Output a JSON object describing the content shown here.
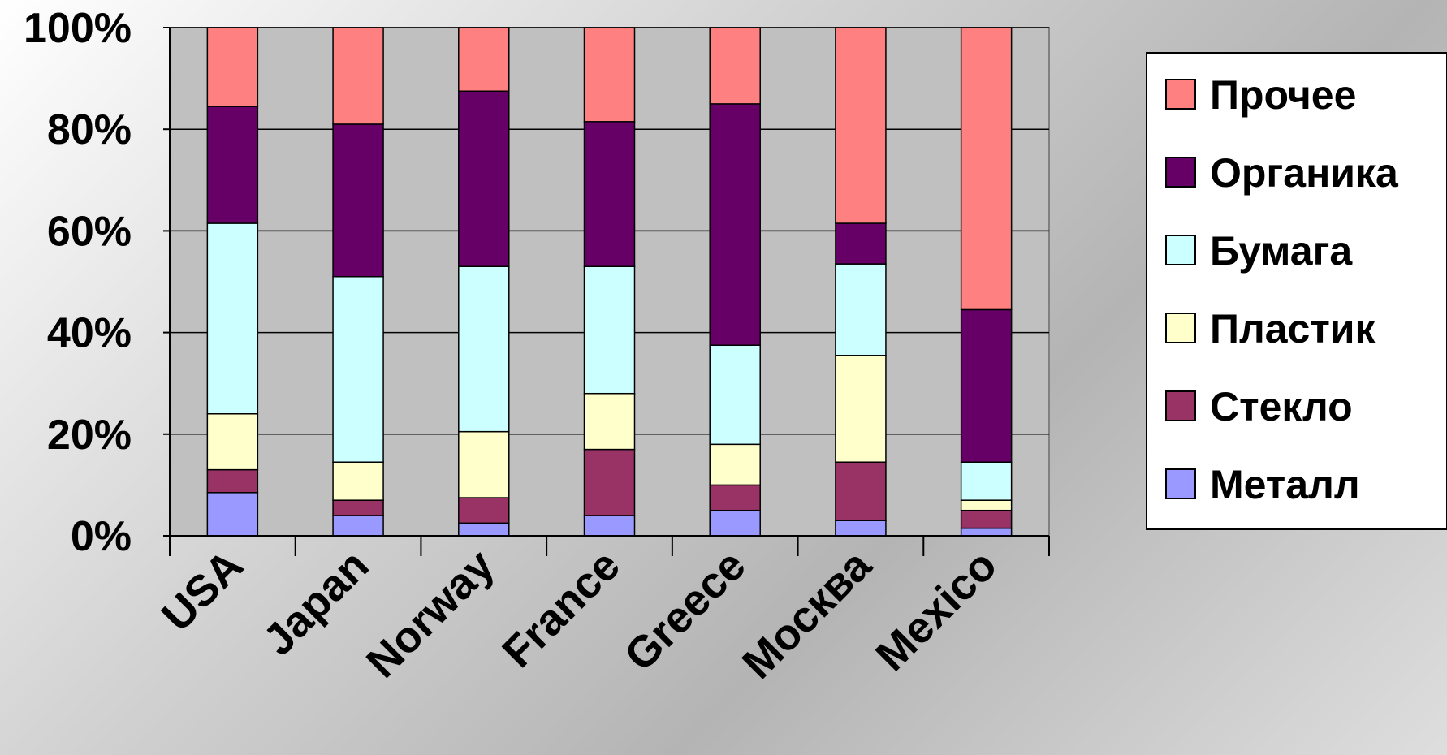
{
  "chart_data": {
    "type": "bar",
    "stacked": true,
    "percent": true,
    "categories": [
      "USA",
      "Japan",
      "Norway",
      "France",
      "Greece",
      "Москва",
      "Mexico"
    ],
    "series": [
      {
        "name": "Металл",
        "color": "#9999FF",
        "values": [
          8.5,
          4,
          2.5,
          4,
          5,
          3,
          1.5
        ]
      },
      {
        "name": "Стекло",
        "color": "#993366",
        "values": [
          4.5,
          3,
          5,
          13,
          5,
          11.5,
          3.5
        ]
      },
      {
        "name": "Пластик",
        "color": "#FFFFCC",
        "values": [
          11,
          7.5,
          13,
          11,
          8,
          21,
          2
        ]
      },
      {
        "name": "Бумага",
        "color": "#CCFFFF",
        "values": [
          37.5,
          36.5,
          32.5,
          25,
          19.5,
          18,
          7.5
        ]
      },
      {
        "name": "Органика",
        "color": "#660066",
        "values": [
          23,
          30,
          34.5,
          28.5,
          47.5,
          8,
          30
        ]
      },
      {
        "name": "Прочее",
        "color": "#FF8080",
        "values": [
          15.5,
          19,
          12.5,
          18.5,
          15,
          38.5,
          55.5
        ]
      }
    ],
    "yticks": [
      "0%",
      "20%",
      "40%",
      "60%",
      "80%",
      "100%"
    ],
    "ylim": [
      0,
      100
    ],
    "grid": true,
    "legend": "right",
    "legend_order": [
      "Прочее",
      "Органика",
      "Бумага",
      "Пластик",
      "Стекло",
      "Металл"
    ],
    "colors": {
      "plot_background": "#C0C0C0",
      "gridline": "#000000",
      "bar_outline": "#000000"
    }
  }
}
